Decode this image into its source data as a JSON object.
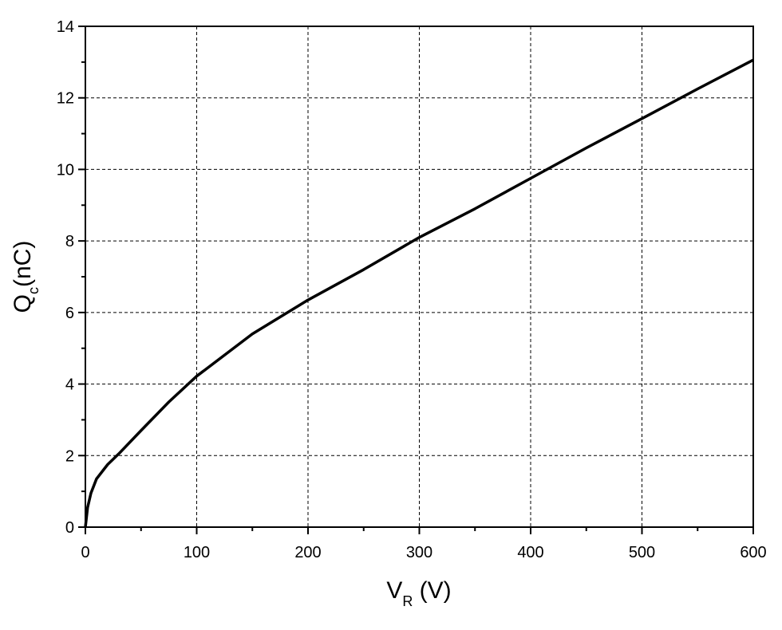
{
  "chart_data": {
    "type": "line",
    "x_label": {
      "main": "V",
      "sub": "R",
      "rest": " (V)"
    },
    "y_label": {
      "main": "Q",
      "sub": "c",
      "rest": "(nC)"
    },
    "x": [
      0,
      2,
      5,
      10,
      20,
      30,
      50,
      75,
      100,
      150,
      200,
      250,
      300,
      350,
      400,
      450,
      500,
      550,
      600
    ],
    "series": [
      {
        "color": "#000000",
        "values": [
          0,
          0.55,
          0.95,
          1.35,
          1.75,
          2.05,
          2.7,
          3.5,
          4.22,
          5.4,
          6.35,
          7.2,
          8.1,
          8.9,
          9.75,
          10.6,
          11.42,
          12.25,
          13.06
        ]
      }
    ],
    "xlim": [
      0,
      600
    ],
    "ylim": [
      0,
      14
    ],
    "xticks": [
      0,
      100,
      200,
      300,
      400,
      500,
      600
    ],
    "yticks": [
      0,
      2,
      4,
      6,
      8,
      10,
      12,
      14
    ],
    "xminorticks": [
      50,
      150,
      250,
      350,
      450,
      550
    ],
    "yminorticks": [
      1,
      3,
      5,
      7,
      9,
      11,
      13
    ],
    "grid": true
  }
}
